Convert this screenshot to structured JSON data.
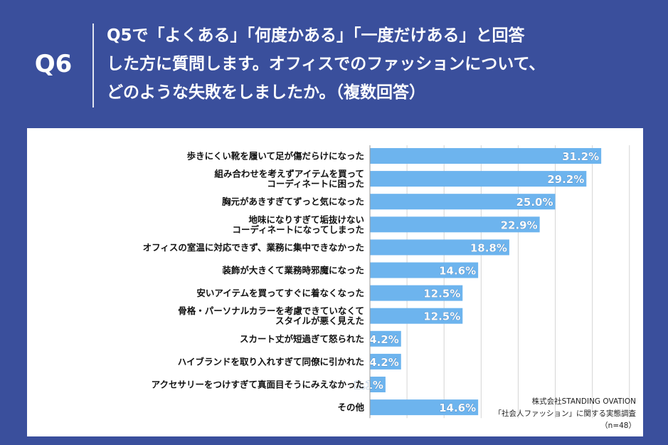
{
  "header": {
    "qnum": "Q6",
    "question_lines": [
      "Q5で「よくある」「何度かある」「一度だけある」と回答",
      "した方に質問します。オフィスでのファッションについて、",
      "どのような失敗をしましたか。（複数回答）"
    ]
  },
  "source": {
    "line1": "株式会社STANDING OVATION",
    "line2": "「社会人ファッション」に関する実態調査",
    "line3": "（n=48）"
  },
  "chart_data": {
    "type": "bar",
    "orientation": "horizontal",
    "categories": [
      [
        "歩きにくい靴を履いて足が傷だらけになった"
      ],
      [
        "組み合わせを考えずアイテムを買って",
        "コーディネートに困った"
      ],
      [
        "胸元があきすぎてずっと気になった"
      ],
      [
        "地味になりすぎて垢抜けない",
        "コーディネートになってしまった"
      ],
      [
        "オフィスの室温に対応できず、業務に集中できなかった"
      ],
      [
        "装飾が大きくて業務時邪魔になった"
      ],
      [
        "安いアイテムを買ってすぐに着なくなった"
      ],
      [
        "骨格・パーソナルカラーを考慮できていなくて",
        "スタイルが悪く見えた"
      ],
      [
        "スカート丈が短過ぎて怒られた"
      ],
      [
        "ハイブランドを取り入れすぎて同僚に引かれた"
      ],
      [
        "アクセサリーをつけすぎて真面目そうにみえなかった"
      ],
      [
        "その他"
      ]
    ],
    "values": [
      31.2,
      29.2,
      25.0,
      22.9,
      18.8,
      14.6,
      12.5,
      12.5,
      4.2,
      4.2,
      2.1,
      14.6
    ],
    "value_labels": [
      "31.2%",
      "29.2%",
      "25.0%",
      "22.9%",
      "18.8%",
      "14.6%",
      "12.5%",
      "12.5%",
      "4.2%",
      "4.2%",
      "2.1%",
      "14.6%"
    ],
    "xlim": [
      0,
      38
    ],
    "grid": true,
    "bar_color": "#6db4ee",
    "background_color": "#3a4f9c"
  }
}
